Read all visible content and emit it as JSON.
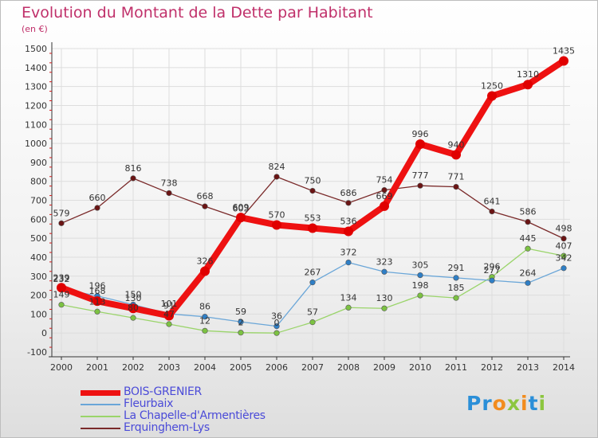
{
  "header": {
    "title": "Evolution du Montant de la Dette par Habitant",
    "unit": "(en €)"
  },
  "colors": {
    "title": "#c0306a",
    "legend_text": "#4b4bd8",
    "grid": "#dddddd",
    "axis_tick_red": "#d61a1a"
  },
  "chart_data": {
    "type": "line",
    "x": [
      "2000",
      "2001",
      "2002",
      "2003",
      "2004",
      "2005",
      "2006",
      "2007",
      "2008",
      "2009",
      "2010",
      "2011",
      "2012",
      "2013",
      "2014"
    ],
    "ylim": [
      -100,
      1500
    ],
    "yticks": [
      -100,
      0,
      100,
      200,
      300,
      400,
      500,
      600,
      700,
      800,
      900,
      1000,
      1100,
      1200,
      1300,
      1400,
      1500
    ],
    "grid": true,
    "legend_position": "bottom-left",
    "series": [
      {
        "name": "Erquinghem-Lys",
        "color": "#7a2a2a",
        "point_color": "#6b1414",
        "values": [
          579,
          660,
          816,
          738,
          668,
          603,
          824,
          750,
          686,
          754,
          777,
          771,
          641,
          586,
          498
        ]
      },
      {
        "name": "La Chapelle-d'Armentières",
        "color": "#9ad46a",
        "point_color": "#7cc242",
        "values": [
          149,
          113,
          80,
          47,
          12,
          2,
          0,
          57,
          134,
          130,
          198,
          185,
          296,
          445,
          407
        ]
      },
      {
        "name": "Fleurbaix",
        "color": "#6aa6d8",
        "point_color": "#2f7fc6",
        "values": [
          232,
          196,
          150,
          101,
          86,
          59,
          36,
          267,
          372,
          323,
          305,
          291,
          277,
          264,
          342
        ]
      },
      {
        "name": "BOIS-GRENIER",
        "color": "#ee1111",
        "point_color": "#e00000",
        "values": [
          239,
          168,
          130,
          91,
          326,
          609,
          570,
          553,
          536,
          669,
          996,
          940,
          1250,
          1310,
          1435
        ]
      }
    ],
    "data_labels": {
      "Erquinghem-Lys": [
        "579",
        "660",
        "816",
        "738",
        "668",
        "603",
        "824",
        "750",
        "686",
        "754",
        "777",
        "771",
        "641",
        "586",
        "498"
      ],
      "La Chapelle-d'Armentières": [
        "149",
        "113",
        "80",
        "47",
        "12",
        "2",
        "0",
        "57",
        "134",
        "130",
        "198",
        "185",
        "296",
        "445",
        "407"
      ],
      "Fleurbaix": [
        "232",
        "196",
        "150",
        "101",
        "86",
        "59",
        "36",
        "267",
        "372",
        "323",
        "305",
        "291",
        "277",
        "264",
        "342"
      ],
      "BOIS-GRENIER": [
        "239",
        "168",
        "130",
        "91",
        "326",
        "609",
        "570",
        "553",
        "536",
        "669",
        "996",
        "940",
        "1250",
        "1310",
        "1435"
      ]
    }
  },
  "legend": {
    "items": [
      {
        "label": "BOIS-GRENIER",
        "color": "#ee1111",
        "thickness": 7
      },
      {
        "label": "Fleurbaix",
        "color": "#6aa6d8",
        "thickness": 2
      },
      {
        "label": "La Chapelle-d'Armentières",
        "color": "#9ad46a",
        "thickness": 2
      },
      {
        "label": "Erquinghem-Lys",
        "color": "#7a2a2a",
        "thickness": 2
      }
    ]
  },
  "logo": {
    "text": "Proxiti"
  }
}
